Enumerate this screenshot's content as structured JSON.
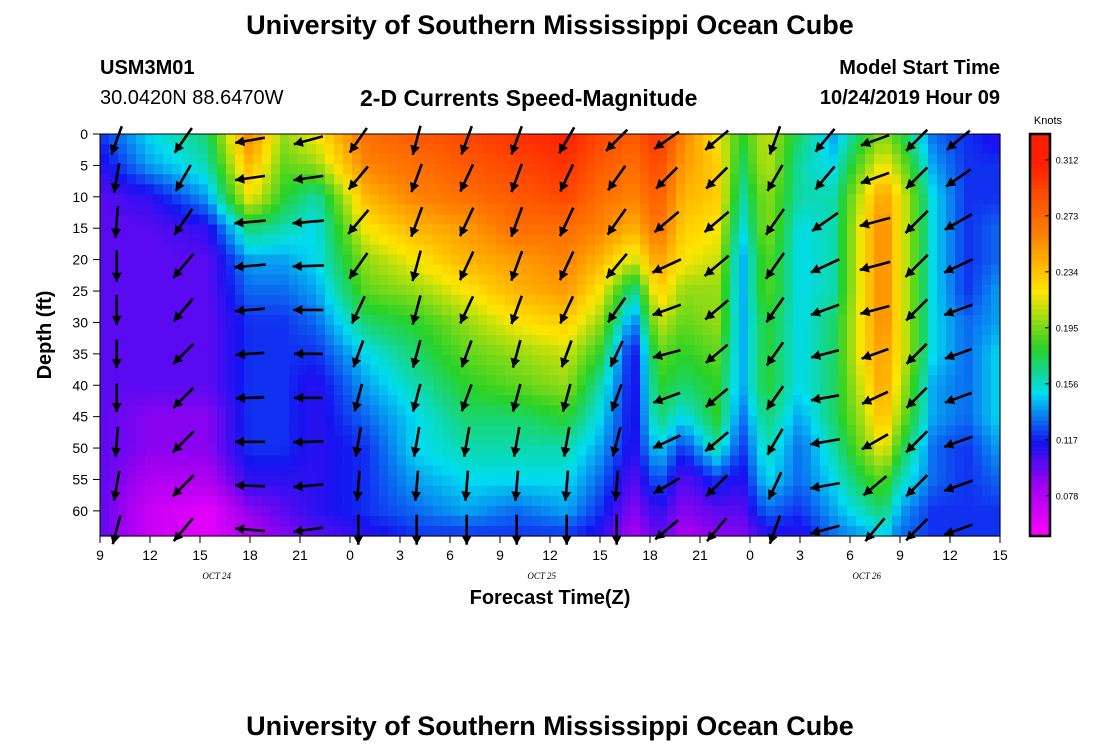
{
  "page": {
    "title_top": "University of Southern Mississippi Ocean Cube",
    "title_bottom": "University of Southern Mississippi Ocean Cube",
    "station_id": "USM3M01",
    "station_location": "30.0420N 88.6470W",
    "plot_title": "2-D Currents Speed-Magnitude",
    "model_start_label": "Model Start Time",
    "model_start_value": "10/24/2019 Hour 09"
  },
  "chart_data": {
    "type": "heatmap",
    "title": "2-D Currents Speed-Magnitude",
    "xlabel": "Forecast Time(Z)",
    "ylabel": "Depth (ft)",
    "x_tick_labels": [
      "9",
      "12",
      "15",
      "18",
      "21",
      "0",
      "3",
      "6",
      "9",
      "12",
      "15",
      "18",
      "21",
      "0",
      "3",
      "6",
      "9",
      "12",
      "15"
    ],
    "x_range_hours": [
      0,
      54
    ],
    "date_labels": [
      {
        "label": "OCT 24",
        "hour": 7
      },
      {
        "label": "OCT 25",
        "hour": 26.5
      },
      {
        "label": "OCT 26",
        "hour": 46
      }
    ],
    "y_tick_labels": [
      "0",
      "5",
      "10",
      "15",
      "20",
      "25",
      "30",
      "35",
      "40",
      "45",
      "50",
      "55",
      "60"
    ],
    "ylim": [
      0,
      64
    ],
    "y_inverted": true,
    "colorbar": {
      "unit": "Knots",
      "ticks": [
        "0.312",
        "0.273",
        "0.234",
        "0.195",
        "0.156",
        "0.117",
        "0.078"
      ],
      "min": 0.05,
      "max": 0.33
    },
    "colors": {
      "magenta": "#ff00ff",
      "purple": "#a000f0",
      "blue": "#1414f0",
      "cyan": "#00dcf0",
      "green": "#28d228",
      "yellow": "#ffe600",
      "orange": "#ff8200",
      "red": "#ff1e00"
    },
    "speed_hours": [
      0,
      3,
      6.5,
      9,
      11,
      13,
      16,
      19,
      22,
      25,
      28,
      30,
      32,
      33.5,
      35,
      37,
      38.5,
      40,
      42,
      44,
      46,
      47,
      48,
      50,
      52,
      54
    ],
    "speed_depths": [
      0,
      5,
      10,
      15,
      20,
      25,
      30,
      35,
      40,
      45,
      50,
      55,
      60,
      64
    ],
    "speed_knots": [
      [
        0.12,
        0.11,
        0.1,
        0.1,
        0.1,
        0.1,
        0.1,
        0.1,
        0.1,
        0.1,
        0.1,
        0.1,
        0.1,
        0.1
      ],
      [
        0.15,
        0.14,
        0.11,
        0.1,
        0.1,
        0.1,
        0.1,
        0.1,
        0.1,
        0.09,
        0.09,
        0.08,
        0.07,
        0.07
      ],
      [
        0.17,
        0.16,
        0.14,
        0.11,
        0.1,
        0.1,
        0.1,
        0.1,
        0.1,
        0.09,
        0.09,
        0.08,
        0.06,
        0.06
      ],
      [
        0.26,
        0.24,
        0.22,
        0.17,
        0.14,
        0.13,
        0.12,
        0.12,
        0.12,
        0.12,
        0.12,
        0.11,
        0.09,
        0.08
      ],
      [
        0.2,
        0.19,
        0.18,
        0.16,
        0.14,
        0.13,
        0.12,
        0.12,
        0.12,
        0.12,
        0.12,
        0.11,
        0.1,
        0.09
      ],
      [
        0.22,
        0.2,
        0.16,
        0.15,
        0.15,
        0.14,
        0.13,
        0.12,
        0.11,
        0.11,
        0.11,
        0.11,
        0.11,
        0.1
      ],
      [
        0.27,
        0.26,
        0.24,
        0.22,
        0.2,
        0.19,
        0.17,
        0.15,
        0.14,
        0.13,
        0.12,
        0.12,
        0.12,
        0.11
      ],
      [
        0.28,
        0.27,
        0.26,
        0.24,
        0.22,
        0.2,
        0.18,
        0.17,
        0.16,
        0.15,
        0.15,
        0.14,
        0.13,
        0.12
      ],
      [
        0.29,
        0.28,
        0.27,
        0.25,
        0.24,
        0.22,
        0.2,
        0.19,
        0.18,
        0.17,
        0.16,
        0.15,
        0.14,
        0.12
      ],
      [
        0.3,
        0.29,
        0.28,
        0.27,
        0.25,
        0.24,
        0.22,
        0.2,
        0.19,
        0.17,
        0.16,
        0.15,
        0.13,
        0.12
      ],
      [
        0.31,
        0.3,
        0.29,
        0.27,
        0.26,
        0.25,
        0.23,
        0.21,
        0.2,
        0.18,
        0.16,
        0.15,
        0.14,
        0.12
      ],
      [
        0.29,
        0.28,
        0.27,
        0.26,
        0.24,
        0.22,
        0.2,
        0.18,
        0.16,
        0.15,
        0.14,
        0.13,
        0.12,
        0.11
      ],
      [
        0.28,
        0.27,
        0.26,
        0.24,
        0.21,
        0.16,
        0.13,
        0.11,
        0.11,
        0.11,
        0.11,
        0.1,
        0.09,
        0.08
      ],
      [
        0.3,
        0.29,
        0.28,
        0.27,
        0.25,
        0.23,
        0.21,
        0.19,
        0.18,
        0.17,
        0.15,
        0.13,
        0.11,
        0.1
      ],
      [
        0.26,
        0.25,
        0.24,
        0.23,
        0.22,
        0.2,
        0.19,
        0.18,
        0.17,
        0.15,
        0.12,
        0.1,
        0.09,
        0.08
      ],
      [
        0.22,
        0.23,
        0.23,
        0.22,
        0.21,
        0.2,
        0.2,
        0.19,
        0.18,
        0.18,
        0.16,
        0.12,
        0.1,
        0.09
      ],
      [
        0.18,
        0.17,
        0.16,
        0.15,
        0.14,
        0.14,
        0.14,
        0.14,
        0.14,
        0.13,
        0.12,
        0.11,
        0.1,
        0.09
      ],
      [
        0.21,
        0.21,
        0.2,
        0.2,
        0.19,
        0.19,
        0.18,
        0.18,
        0.18,
        0.17,
        0.16,
        0.15,
        0.13,
        0.11
      ],
      [
        0.17,
        0.16,
        0.16,
        0.15,
        0.15,
        0.15,
        0.15,
        0.15,
        0.15,
        0.14,
        0.13,
        0.13,
        0.12,
        0.11
      ],
      [
        0.14,
        0.15,
        0.16,
        0.16,
        0.16,
        0.16,
        0.17,
        0.17,
        0.17,
        0.17,
        0.16,
        0.15,
        0.14,
        0.13
      ],
      [
        0.18,
        0.2,
        0.22,
        0.23,
        0.23,
        0.23,
        0.23,
        0.23,
        0.22,
        0.21,
        0.2,
        0.18,
        0.16,
        0.14
      ],
      [
        0.2,
        0.22,
        0.25,
        0.26,
        0.26,
        0.26,
        0.26,
        0.25,
        0.25,
        0.24,
        0.22,
        0.19,
        0.17,
        0.15
      ],
      [
        0.18,
        0.2,
        0.22,
        0.22,
        0.22,
        0.22,
        0.22,
        0.22,
        0.21,
        0.2,
        0.18,
        0.16,
        0.14,
        0.13
      ],
      [
        0.13,
        0.14,
        0.15,
        0.15,
        0.15,
        0.15,
        0.15,
        0.15,
        0.14,
        0.14,
        0.13,
        0.13,
        0.12,
        0.12
      ],
      [
        0.12,
        0.12,
        0.12,
        0.12,
        0.12,
        0.12,
        0.13,
        0.13,
        0.13,
        0.13,
        0.12,
        0.12,
        0.12,
        0.12
      ],
      [
        0.11,
        0.12,
        0.12,
        0.13,
        0.13,
        0.14,
        0.14,
        0.15,
        0.15,
        0.15,
        0.14,
        0.13,
        0.12,
        0.12
      ]
    ],
    "arrow_hours": [
      1,
      5,
      9,
      12.5,
      15.5,
      19,
      22,
      25,
      28,
      31,
      34,
      37,
      40.5,
      43.5,
      46.5,
      49,
      51.5
    ],
    "arrow_depths": [
      1,
      7,
      14,
      21,
      28,
      35,
      42,
      49,
      56,
      63
    ],
    "arrow_angles_deg": [
      [
        200,
        190,
        185,
        180,
        180,
        180,
        180,
        185,
        190,
        195
      ],
      [
        215,
        210,
        215,
        220,
        220,
        225,
        225,
        225,
        225,
        220
      ],
      [
        260,
        262,
        265,
        265,
        265,
        266,
        268,
        270,
        272,
        275
      ],
      [
        255,
        262,
        265,
        268,
        270,
        270,
        270,
        268,
        265,
        262
      ],
      [
        215,
        220,
        220,
        215,
        205,
        200,
        195,
        190,
        185,
        180
      ],
      [
        195,
        200,
        200,
        195,
        195,
        195,
        195,
        190,
        185,
        180
      ],
      [
        200,
        205,
        205,
        205,
        205,
        200,
        200,
        190,
        185,
        180
      ],
      [
        200,
        200,
        200,
        200,
        200,
        195,
        195,
        190,
        185,
        180
      ],
      [
        210,
        205,
        205,
        205,
        205,
        200,
        195,
        190,
        185,
        180
      ],
      [
        225,
        215,
        215,
        220,
        215,
        205,
        200,
        195,
        185,
        180
      ],
      [
        235,
        225,
        230,
        245,
        250,
        255,
        250,
        245,
        240,
        230
      ],
      [
        230,
        225,
        230,
        230,
        230,
        230,
        230,
        230,
        225,
        220
      ],
      [
        200,
        210,
        215,
        215,
        215,
        215,
        215,
        210,
        205,
        200
      ],
      [
        220,
        220,
        235,
        245,
        250,
        255,
        260,
        260,
        260,
        255
      ],
      [
        250,
        250,
        255,
        255,
        255,
        250,
        245,
        240,
        230,
        220
      ],
      [
        225,
        225,
        225,
        225,
        225,
        225,
        225,
        225,
        225,
        225
      ],
      [
        230,
        235,
        240,
        245,
        250,
        250,
        250,
        250,
        250,
        250
      ]
    ],
    "arrow_speed_scale": [
      1.0,
      1.0,
      1.05,
      1.05,
      1.0,
      0.95,
      0.95,
      1.0,
      1.0,
      1.0
    ]
  }
}
